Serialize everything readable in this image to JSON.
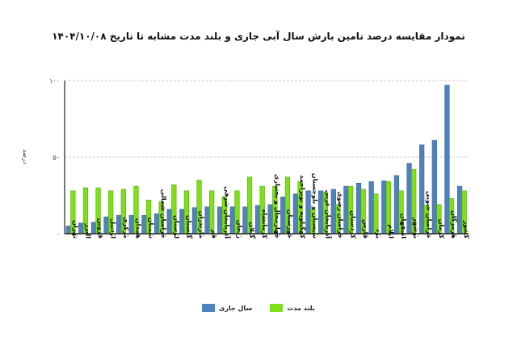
{
  "title": "نمودار  مقایسه درصد تامین بارش  سال آبی جاری و بلند مدت مشابه تا تاریخ  ۱۴۰۴/۱۰/۰۸",
  "colors": {
    "current": "#4f81bd",
    "long_term": "#7fe01a",
    "axis": "#222222",
    "grid": "#bbbbbb"
  },
  "legend": {
    "current_label": "سال جاری",
    "long_term_label": "بلند مدت"
  },
  "chart_data": {
    "type": "bar",
    "title": "نمودار  مقایسه درصد تامین بارش  سال آبی جاری و بلند مدت مشابه تا تاریخ  ۱۴۰۴/۱۰/۰۸",
    "xlabel": "",
    "ylabel": "درصد",
    "ylim": [
      0,
      100
    ],
    "yticks": [
      0,
      50,
      100
    ],
    "ytick_labels": [
      "۰",
      "۵۰",
      "۱۰۰"
    ],
    "grid": true,
    "legend_position": "bottom",
    "categories": [
      "تهران",
      "البرز",
      "قزوین",
      "اردبیل",
      "مرکزی",
      "همدان",
      "سمنان",
      "خراسان شمالی",
      "لرستان",
      "گلستان",
      "مازندران",
      "قم",
      "آذربایجان شرقی",
      "زنجان",
      "گیلان",
      "کرمانشاه",
      "چهارمحال و بختیاری",
      "خوزستان",
      "کهگیلویه و بویراحمد",
      "سیستان و بلوچستان",
      "آذربایجان غربی",
      "خراسان رضوی",
      "کردستان",
      "فارس",
      "یزد",
      "ایلام",
      "اصفهان",
      "بوشهر",
      "خراسان جنوبی",
      "کرمان",
      "هرمزگان",
      "کشور"
    ],
    "series": [
      {
        "name": "سال جاری",
        "values": [
          5,
          7,
          7.5,
          11,
          12,
          12,
          12,
          13,
          16,
          16,
          17,
          17.5,
          17.5,
          17.5,
          17.5,
          18.5,
          19,
          24,
          26,
          28,
          28,
          29,
          31,
          33,
          34,
          34.5,
          38,
          46,
          58,
          61,
          97,
          31
        ]
      },
      {
        "name": "بلند مدت",
        "values": [
          28,
          30,
          30,
          28,
          29,
          31,
          22,
          21,
          32,
          28,
          35,
          28,
          24,
          28,
          37,
          31,
          31,
          37,
          34,
          16,
          27,
          19,
          31,
          29,
          26,
          34,
          28,
          42,
          18.5,
          19,
          23,
          28
        ]
      }
    ]
  }
}
